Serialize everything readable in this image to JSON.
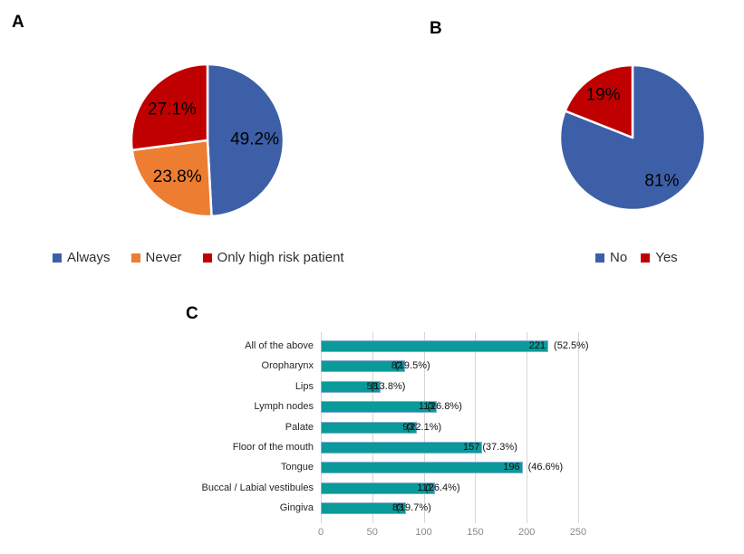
{
  "panels": {
    "a": {
      "label": "A"
    },
    "b": {
      "label": "B"
    },
    "c": {
      "label": "C"
    }
  },
  "colors": {
    "blue": "#3d5fa8",
    "orange": "#ed7d31",
    "red": "#c00000",
    "teal": "#0a9a9a",
    "bar_border": "#85acd5",
    "grid": "#d6d6d6",
    "tick_text": "#8a8a8a",
    "category_text": "#262626",
    "pie_label_text": "#000000",
    "legend_text": "#303030"
  },
  "chart_data": [
    {
      "id": "pie_a",
      "panel": "A",
      "type": "pie",
      "legend_position": "bottom",
      "slices": [
        {
          "label": "Always",
          "value": 49.2,
          "display": "49.2%",
          "color_key": "blue"
        },
        {
          "label": "Never",
          "value": 23.8,
          "display": "23.8%",
          "color_key": "orange"
        },
        {
          "label": "Only high risk patient",
          "value": 27.1,
          "display": "27.1%",
          "color_key": "red"
        }
      ]
    },
    {
      "id": "pie_b",
      "panel": "B",
      "type": "pie",
      "legend_position": "bottom",
      "slices": [
        {
          "label": "No",
          "value": 81,
          "display": "81%",
          "color_key": "blue"
        },
        {
          "label": "Yes",
          "value": 19,
          "display": "19%",
          "color_key": "red"
        }
      ]
    },
    {
      "id": "bar_c",
      "panel": "C",
      "type": "bar",
      "orientation": "horizontal",
      "bar_color_key": "teal",
      "grid": true,
      "xlim": [
        0,
        250
      ],
      "xticks": [
        "0",
        "50",
        "100",
        "150",
        "200",
        "250"
      ],
      "categories": [
        "All of the above",
        "Oropharynx",
        "Lips",
        "Lymph nodes",
        "Palate",
        "Floor of the mouth",
        "Tongue",
        "Buccal / Labial vestibules",
        "Gingiva"
      ],
      "values": [
        221,
        82,
        58,
        113,
        93,
        157,
        196,
        111,
        83
      ],
      "value_labels": [
        "221",
        "82",
        "58",
        "113",
        "93",
        "157",
        "196",
        "111",
        "83"
      ],
      "pct_labels": [
        "(52.5%)",
        "(19.5%)",
        "(13.8%)",
        "(26.8%)",
        "(22.1%)",
        "(37.3%)",
        "(46.6%)",
        "(26.4%)",
        "(19.7%)"
      ]
    }
  ]
}
